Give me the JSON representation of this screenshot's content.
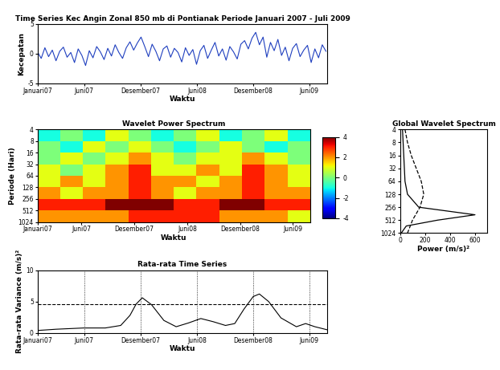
{
  "chart_data": [
    {
      "type": "line",
      "title": "Time Series Kec Angin Zonal 850 mb di Pontianak Periode Januari 2007 - Juli 2009",
      "x_label": "Waktu",
      "y_label": "Kecepatan",
      "xlim": [
        0,
        941
      ],
      "ylim": [
        -5,
        5
      ],
      "yticks": [
        -5,
        0,
        5
      ],
      "xticks": [
        {
          "value": 0,
          "label": "Januari07"
        },
        {
          "value": 151,
          "label": "Juni07"
        },
        {
          "value": 334,
          "label": "Desember07"
        },
        {
          "value": 517,
          "label": "Juni08"
        },
        {
          "value": 700,
          "label": "Desember08"
        },
        {
          "value": 882,
          "label": "Juni09"
        }
      ],
      "series": [
        {
          "color": "#1f3fbf",
          "line_style": "solid",
          "x": [
            0,
            12,
            24,
            36,
            48,
            60,
            72,
            84,
            96,
            108,
            120,
            132,
            144,
            156,
            168,
            180,
            192,
            204,
            216,
            228,
            240,
            252,
            264,
            276,
            288,
            300,
            312,
            324,
            336,
            348,
            360,
            372,
            384,
            396,
            408,
            420,
            432,
            444,
            456,
            468,
            480,
            492,
            504,
            516,
            528,
            540,
            552,
            564,
            576,
            588,
            600,
            612,
            624,
            636,
            648,
            660,
            672,
            684,
            696,
            708,
            720,
            732,
            744,
            756,
            768,
            780,
            792,
            804,
            816,
            828,
            840,
            852,
            864,
            876,
            888,
            900,
            912,
            924,
            936
          ],
          "values": [
            0.3,
            -0.8,
            1.0,
            -0.5,
            0.6,
            -1.2,
            0.4,
            1.1,
            -0.6,
            0.2,
            -1.5,
            0.8,
            -0.3,
            -2.0,
            0.5,
            -0.7,
            1.2,
            0.3,
            -1.0,
            0.9,
            -0.4,
            1.5,
            0.2,
            -0.8,
            1.0,
            2.0,
            0.6,
            1.8,
            2.8,
            1.2,
            -0.5,
            1.6,
            0.4,
            -1.2,
            0.8,
            1.3,
            -0.6,
            0.9,
            0.2,
            -1.4,
            1.0,
            -0.3,
            0.7,
            -1.8,
            0.5,
            1.4,
            -0.8,
            0.6,
            1.9,
            -0.4,
            0.8,
            -1.1,
            1.2,
            0.3,
            -0.9,
            1.6,
            2.2,
            0.8,
            2.6,
            3.6,
            1.5,
            2.8,
            -0.6,
            1.9,
            0.5,
            2.4,
            -0.3,
            1.1,
            -1.2,
            0.9,
            1.7,
            -0.5,
            0.6,
            1.4,
            -1.5,
            0.8,
            -0.7,
            1.5,
            0.4
          ]
        }
      ]
    },
    {
      "type": "heatmap",
      "title": "Wavelet Power Spectrum",
      "x_label": "Waktu",
      "y_label": "Periode (Hari)",
      "log": "y",
      "xlim": [
        0,
        941
      ],
      "ylim": [
        1024,
        4
      ],
      "yticks": [
        4,
        8,
        16,
        32,
        64,
        128,
        256,
        512,
        1024
      ],
      "xticks": [
        {
          "value": 0,
          "label": "Januari07"
        },
        {
          "value": 151,
          "label": "Juni07"
        },
        {
          "value": 334,
          "label": "Desember07"
        },
        {
          "value": 517,
          "label": "Juni08"
        },
        {
          "value": 700,
          "label": "Desember08"
        },
        {
          "value": 882,
          "label": "Juni09"
        }
      ],
      "x_edges": [
        0,
        78,
        157,
        235,
        314,
        392,
        471,
        549,
        627,
        706,
        784,
        863,
        941
      ],
      "y_edges": [
        4,
        8,
        16,
        32,
        64,
        128,
        256,
        512,
        1024
      ],
      "cells": [
        [
          -1,
          0,
          -1,
          1,
          0,
          -1,
          0,
          1,
          -1,
          0,
          1,
          -1
        ],
        [
          0,
          -1,
          1,
          0,
          1,
          0,
          -1,
          0,
          1,
          0,
          -1,
          0
        ],
        [
          0,
          1,
          0,
          1,
          2,
          1,
          0,
          1,
          1,
          2,
          1,
          0
        ],
        [
          1,
          0,
          1,
          2,
          3,
          1,
          1,
          2,
          1,
          3,
          2,
          1
        ],
        [
          1,
          2,
          1,
          2,
          3,
          2,
          2,
          1,
          2,
          3,
          2,
          1
        ],
        [
          2,
          1,
          2,
          2,
          3,
          2,
          1,
          2,
          2,
          3,
          2,
          2
        ],
        [
          3,
          3,
          3,
          4,
          4,
          4,
          3,
          3,
          4,
          4,
          3,
          3
        ],
        [
          2,
          2,
          2,
          2,
          3,
          3,
          3,
          3,
          2,
          2,
          2,
          1
        ]
      ],
      "color_range": [
        -4,
        4
      ],
      "color_ticks": [
        4,
        2,
        0,
        -2,
        -4
      ]
    },
    {
      "type": "line",
      "orientation": "horizontal",
      "title": "Global Wavelet Spectrum",
      "x_label": "Power (m/s)²",
      "log": "y",
      "xlim": [
        0,
        700
      ],
      "xticks": [
        0,
        200,
        400,
        600
      ],
      "ylim": [
        1024,
        4
      ],
      "yticks": [
        4,
        8,
        16,
        32,
        64,
        128,
        256,
        512,
        1024
      ],
      "series": [
        {
          "color": "#000000",
          "line_style": "solid",
          "periods": [
            4,
            8,
            16,
            32,
            64,
            128,
            256,
            384,
            512,
            700,
            1024
          ],
          "values": [
            20,
            25,
            30,
            35,
            40,
            60,
            150,
            600,
            300,
            50,
            10
          ]
        },
        {
          "color": "#000000",
          "line_style": "dashed",
          "periods": [
            4,
            8,
            16,
            32,
            64,
            128,
            256,
            512,
            1024
          ],
          "values": [
            40,
            60,
            90,
            130,
            170,
            190,
            160,
            100,
            60
          ]
        }
      ]
    },
    {
      "type": "line",
      "title": "Rata-rata Time Series",
      "x_label": "Waktu",
      "y_label": "Rata-rata Variance (m/s)²",
      "xlim": [
        0,
        941
      ],
      "ylim": [
        0,
        10
      ],
      "yticks": [
        0,
        5,
        10
      ],
      "grid": "x",
      "xticks": [
        {
          "value": 0,
          "label": "Januari07"
        },
        {
          "value": 151,
          "label": "Juni07"
        },
        {
          "value": 334,
          "label": "Desember07"
        },
        {
          "value": 517,
          "label": "Juni08"
        },
        {
          "value": 700,
          "label": "Desember08"
        },
        {
          "value": 882,
          "label": "Juni09"
        }
      ],
      "series": [
        {
          "color": "#000000",
          "line_style": "solid",
          "x": [
            0,
            60,
            150,
            220,
            270,
            300,
            320,
            340,
            370,
            410,
            450,
            490,
            530,
            570,
            610,
            640,
            670,
            700,
            720,
            750,
            790,
            840,
            870,
            900,
            941
          ],
          "values": [
            0.4,
            0.6,
            0.8,
            0.8,
            1.2,
            2.8,
            4.6,
            5.6,
            4.5,
            2.0,
            1.0,
            1.6,
            2.3,
            1.8,
            1.2,
            1.5,
            3.8,
            5.8,
            6.2,
            5.0,
            2.4,
            1.0,
            1.5,
            1.0,
            0.5
          ]
        },
        {
          "color": "#000000",
          "line_style": "dashed",
          "x": [
            0,
            941
          ],
          "values": [
            4.6,
            4.6
          ]
        }
      ]
    }
  ]
}
